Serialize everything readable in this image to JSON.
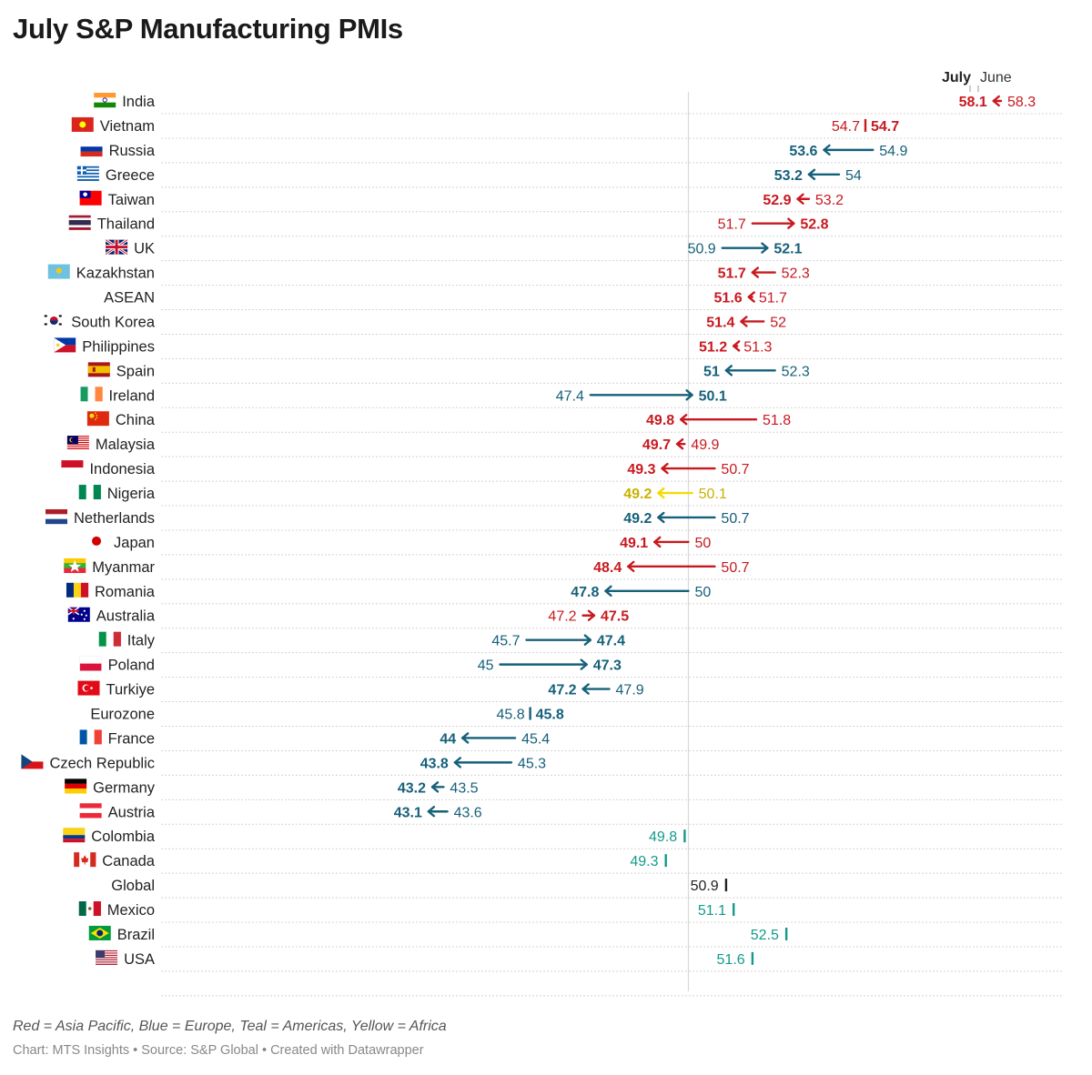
{
  "title": "July S&P Manufacturing PMIs",
  "legend": {
    "july": "July",
    "june": "June"
  },
  "colors": {
    "asia": "#c8191f",
    "europe": "#16607a",
    "americas": "#139b8a",
    "africa": "#c9b100",
    "global": "#222222",
    "africa_arrow": "#f2dc00"
  },
  "chart_data": {
    "type": "arrow-dot",
    "title": "July S&P Manufacturing PMIs",
    "xlim": [
      36,
      58.3
    ],
    "reference_line": 50,
    "series_names": [
      "July",
      "June"
    ],
    "rows": [
      {
        "country": "India",
        "region": "asia",
        "flag": "india",
        "july": 58.1,
        "june": 58.3
      },
      {
        "country": "Vietnam",
        "region": "asia",
        "flag": "vietnam",
        "july": 54.7,
        "june": 54.7
      },
      {
        "country": "Russia",
        "region": "europe",
        "flag": "russia",
        "july": 53.6,
        "june": 54.9
      },
      {
        "country": "Greece",
        "region": "europe",
        "flag": "greece",
        "july": 53.2,
        "june": 54
      },
      {
        "country": "Taiwan",
        "region": "asia",
        "flag": "taiwan",
        "july": 52.9,
        "june": 53.2
      },
      {
        "country": "Thailand",
        "region": "asia",
        "flag": "thailand",
        "july": 52.8,
        "june": 51.7
      },
      {
        "country": "UK",
        "region": "europe",
        "flag": "uk",
        "july": 52.1,
        "june": 50.9
      },
      {
        "country": "Kazakhstan",
        "region": "asia",
        "flag": "kazakhstan",
        "july": 51.7,
        "june": 52.3
      },
      {
        "country": "ASEAN",
        "region": "asia",
        "flag": "",
        "july": 51.6,
        "june": 51.7
      },
      {
        "country": "South Korea",
        "region": "asia",
        "flag": "korea",
        "july": 51.4,
        "june": 52
      },
      {
        "country": "Philippines",
        "region": "asia",
        "flag": "philippines",
        "july": 51.2,
        "june": 51.3
      },
      {
        "country": "Spain",
        "region": "europe",
        "flag": "spain",
        "july": 51,
        "june": 52.3
      },
      {
        "country": "Ireland",
        "region": "europe",
        "flag": "ireland",
        "july": 50.1,
        "june": 47.4
      },
      {
        "country": "China",
        "region": "asia",
        "flag": "china",
        "july": 49.8,
        "june": 51.8
      },
      {
        "country": "Malaysia",
        "region": "asia",
        "flag": "malaysia",
        "july": 49.7,
        "june": 49.9
      },
      {
        "country": "Indonesia",
        "region": "asia",
        "flag": "indonesia",
        "july": 49.3,
        "june": 50.7
      },
      {
        "country": "Nigeria",
        "region": "africa",
        "flag": "nigeria",
        "july": 49.2,
        "june": 50.1
      },
      {
        "country": "Netherlands",
        "region": "europe",
        "flag": "netherlands",
        "july": 49.2,
        "june": 50.7
      },
      {
        "country": "Japan",
        "region": "asia",
        "flag": "japan",
        "july": 49.1,
        "june": 50
      },
      {
        "country": "Myanmar",
        "region": "asia",
        "flag": "myanmar",
        "july": 48.4,
        "june": 50.7
      },
      {
        "country": "Romania",
        "region": "europe",
        "flag": "romania",
        "july": 47.8,
        "june": 50
      },
      {
        "country": "Australia",
        "region": "asia",
        "flag": "australia",
        "july": 47.5,
        "june": 47.2
      },
      {
        "country": "Italy",
        "region": "europe",
        "flag": "italy",
        "july": 47.4,
        "june": 45.7
      },
      {
        "country": "Poland",
        "region": "europe",
        "flag": "poland",
        "july": 47.3,
        "june": 45
      },
      {
        "country": "Turkiye",
        "region": "europe",
        "flag": "turkiye",
        "july": 47.2,
        "june": 47.9
      },
      {
        "country": "Eurozone",
        "region": "europe",
        "flag": "",
        "july": 45.8,
        "june": 45.8
      },
      {
        "country": "France",
        "region": "europe",
        "flag": "france",
        "july": 44,
        "june": 45.4
      },
      {
        "country": "Czech Republic",
        "region": "europe",
        "flag": "czech",
        "july": 43.8,
        "june": 45.3
      },
      {
        "country": "Germany",
        "region": "europe",
        "flag": "germany",
        "july": 43.2,
        "june": 43.5
      },
      {
        "country": "Austria",
        "region": "europe",
        "flag": "austria",
        "july": 43.1,
        "june": 43.6
      },
      {
        "country": "Colombia",
        "region": "americas",
        "flag": "colombia",
        "july": null,
        "june": 49.8
      },
      {
        "country": "Canada",
        "region": "americas",
        "flag": "canada",
        "july": null,
        "june": 49.3
      },
      {
        "country": "Global",
        "region": "global",
        "flag": "",
        "july": null,
        "june": 50.9
      },
      {
        "country": "Mexico",
        "region": "americas",
        "flag": "mexico",
        "july": null,
        "june": 51.1
      },
      {
        "country": "Brazil",
        "region": "americas",
        "flag": "brazil",
        "july": null,
        "june": 52.5
      },
      {
        "country": "USA",
        "region": "americas",
        "flag": "usa",
        "july": null,
        "june": 51.6
      }
    ]
  },
  "footer": {
    "note": "Red = Asia Pacific, Blue = Europe, Teal = Americas, Yellow = Africa",
    "credits": "Chart: MTS Insights • Source: S&P Global • Created with Datawrapper"
  }
}
